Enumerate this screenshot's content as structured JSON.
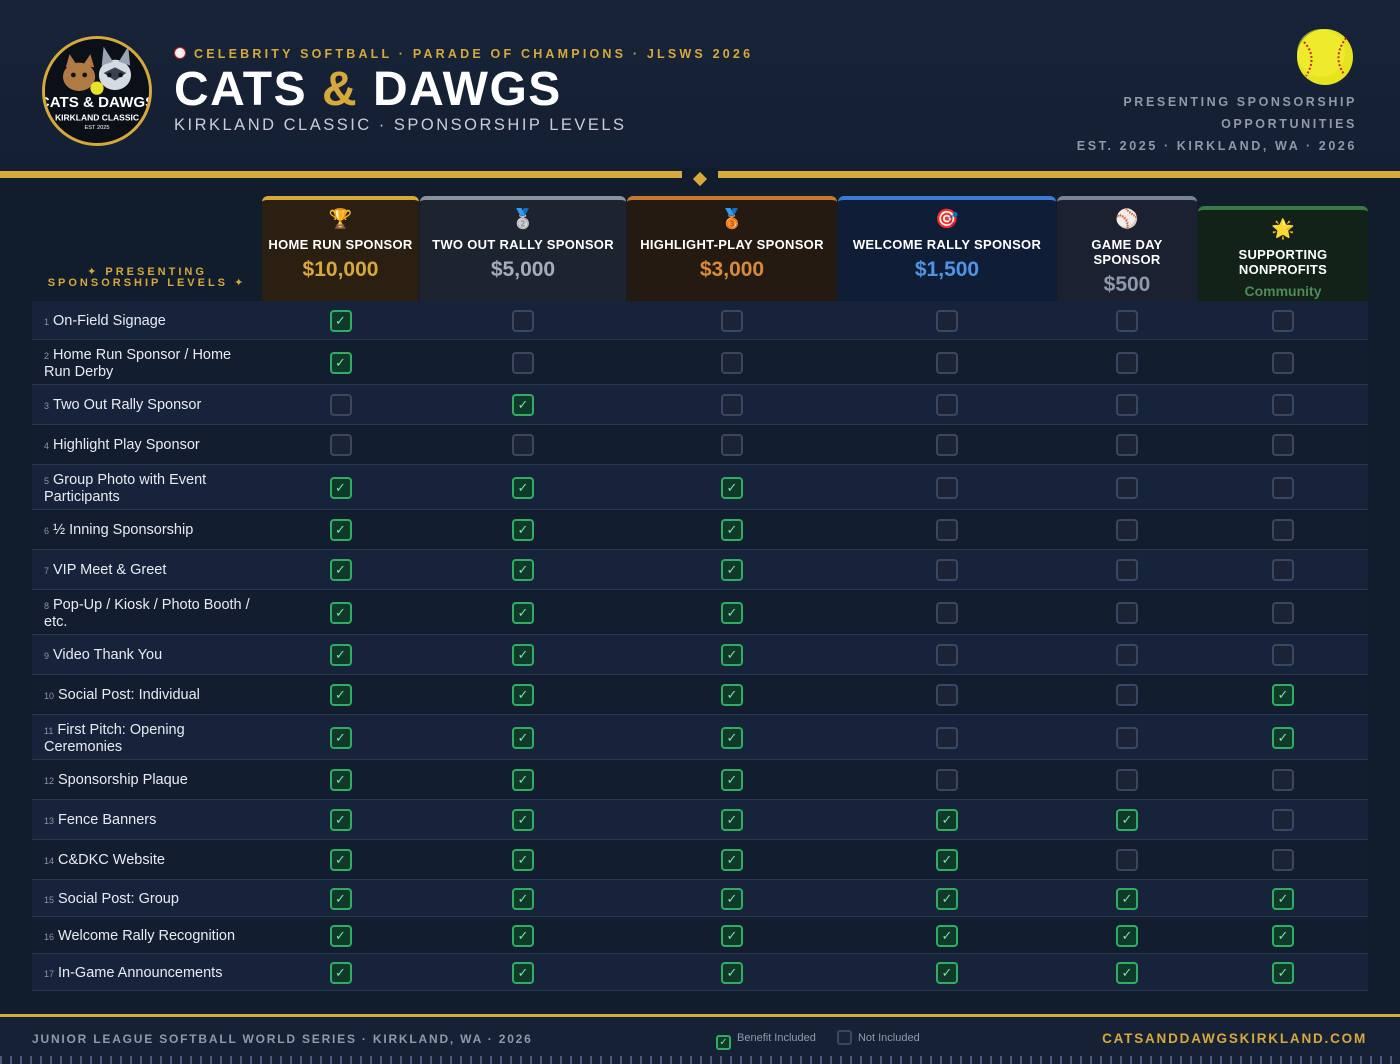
{
  "header": {
    "eyebrow": "CELEBRITY SOFTBALL · PARADE OF CHAMPIONS · JLSWS 2026",
    "title_part1": "CATS",
    "title_amp": "&",
    "title_part2": "DAWGS",
    "subtitle": "KIRKLAND CLASSIC · SPONSORSHIP LEVELS",
    "right_line1": "PRESENTING SPONSORSHIP",
    "right_line2": "OPPORTUNITIES",
    "right_line3": "EST. 2025 · KIRKLAND, WA · 2026",
    "logo": {
      "line1": "CATS & DAWGS",
      "line2": "KIRKLAND CLASSIC",
      "line3": "EST 2025"
    }
  },
  "colors": {
    "gold": "#d7a93a",
    "background": "#111c2d",
    "check_green": "#2fae63"
  },
  "table": {
    "levels_label": "✦ PRESENTING SPONSORSHIP LEVELS ✦",
    "columns": [
      {
        "icon": "🏆",
        "icon_name": "trophy-icon",
        "name": "HOME RUN SPONSOR",
        "price": "$10,000",
        "accent": "#d7a93a",
        "price_color": "#d7a93a",
        "bg": "#2a1f10"
      },
      {
        "icon": "🥈",
        "icon_name": "silver-medal-icon",
        "name": "TWO OUT RALLY SPONSOR",
        "price": "$5,000",
        "accent": "#8a92a0",
        "price_color": "#a6adb9",
        "bg": "#1e2330"
      },
      {
        "icon": "🥉",
        "icon_name": "bronze-medal-icon",
        "name": "HIGHLIGHT-PLAY SPONSOR",
        "price": "$3,000",
        "accent": "#c87a2c",
        "price_color": "#d88a3c",
        "bg": "#241a12"
      },
      {
        "icon": "🎯",
        "icon_name": "target-icon",
        "name": "WELCOME RALLY SPONSOR",
        "price": "$1,500",
        "accent": "#3b7bd6",
        "price_color": "#4f95e6",
        "bg": "#0f1e36"
      },
      {
        "icon": "⚾",
        "icon_name": "baseball-icon",
        "name": "GAME DAY SPONSOR",
        "price": "$500",
        "accent": "#7b8494",
        "price_color": "#8f99aa",
        "bg": "#1b2130"
      },
      {
        "icon": "🌟",
        "icon_name": "star-icon",
        "name": "SUPPORTING NONPROFITS",
        "price": "Community",
        "accent": "#3a7a45",
        "price_color": "#4e8a5a",
        "bg": "#122218"
      }
    ],
    "rows": [
      {
        "num": "1",
        "label": "On-Field Signage",
        "checks": [
          true,
          false,
          false,
          false,
          false,
          false
        ]
      },
      {
        "num": "2",
        "label": "Home Run Sponsor / Home Run Derby",
        "checks": [
          true,
          false,
          false,
          false,
          false,
          false
        ]
      },
      {
        "num": "3",
        "label": "Two Out Rally Sponsor",
        "checks": [
          false,
          true,
          false,
          false,
          false,
          false
        ]
      },
      {
        "num": "4",
        "label": "Highlight Play Sponsor",
        "checks": [
          false,
          false,
          false,
          false,
          false,
          false
        ]
      },
      {
        "num": "5",
        "label": "Group Photo with Event Participants",
        "checks": [
          true,
          true,
          true,
          false,
          false,
          false
        ]
      },
      {
        "num": "6",
        "label": "½ Inning Sponsorship",
        "checks": [
          true,
          true,
          true,
          false,
          false,
          false
        ]
      },
      {
        "num": "7",
        "label": "VIP Meet & Greet",
        "checks": [
          true,
          true,
          true,
          false,
          false,
          false
        ]
      },
      {
        "num": "8",
        "label": "Pop-Up / Kiosk / Photo Booth / etc.",
        "checks": [
          true,
          true,
          true,
          false,
          false,
          false
        ]
      },
      {
        "num": "9",
        "label": "Video Thank You",
        "checks": [
          true,
          true,
          true,
          false,
          false,
          false
        ]
      },
      {
        "num": "10",
        "label": "Social Post: Individual",
        "checks": [
          true,
          true,
          true,
          false,
          false,
          true
        ]
      },
      {
        "num": "11",
        "label": "First Pitch: Opening Ceremonies",
        "checks": [
          true,
          true,
          true,
          false,
          false,
          true
        ]
      },
      {
        "num": "12",
        "label": "Sponsorship Plaque",
        "checks": [
          true,
          true,
          true,
          false,
          false,
          false
        ]
      },
      {
        "num": "13",
        "label": "Fence Banners",
        "checks": [
          true,
          true,
          true,
          true,
          true,
          false
        ]
      },
      {
        "num": "14",
        "label": "C&DKC Website",
        "checks": [
          true,
          true,
          true,
          true,
          false,
          false
        ]
      },
      {
        "num": "15",
        "label": "Social Post: Group",
        "checks": [
          true,
          true,
          true,
          true,
          true,
          true
        ]
      },
      {
        "num": "16",
        "label": "Welcome Rally Recognition",
        "checks": [
          true,
          true,
          true,
          true,
          true,
          true
        ]
      },
      {
        "num": "17",
        "label": "In-Game Announcements",
        "checks": [
          true,
          true,
          true,
          true,
          true,
          true
        ]
      }
    ]
  },
  "footer": {
    "left": "JUNIOR LEAGUE SOFTBALL WORLD SERIES · KIRKLAND, WA · 2026",
    "legend_included": "Benefit Included",
    "legend_not_included": "Not Included",
    "right": "CATSANDDAWGSKIRKLAND.COM"
  }
}
